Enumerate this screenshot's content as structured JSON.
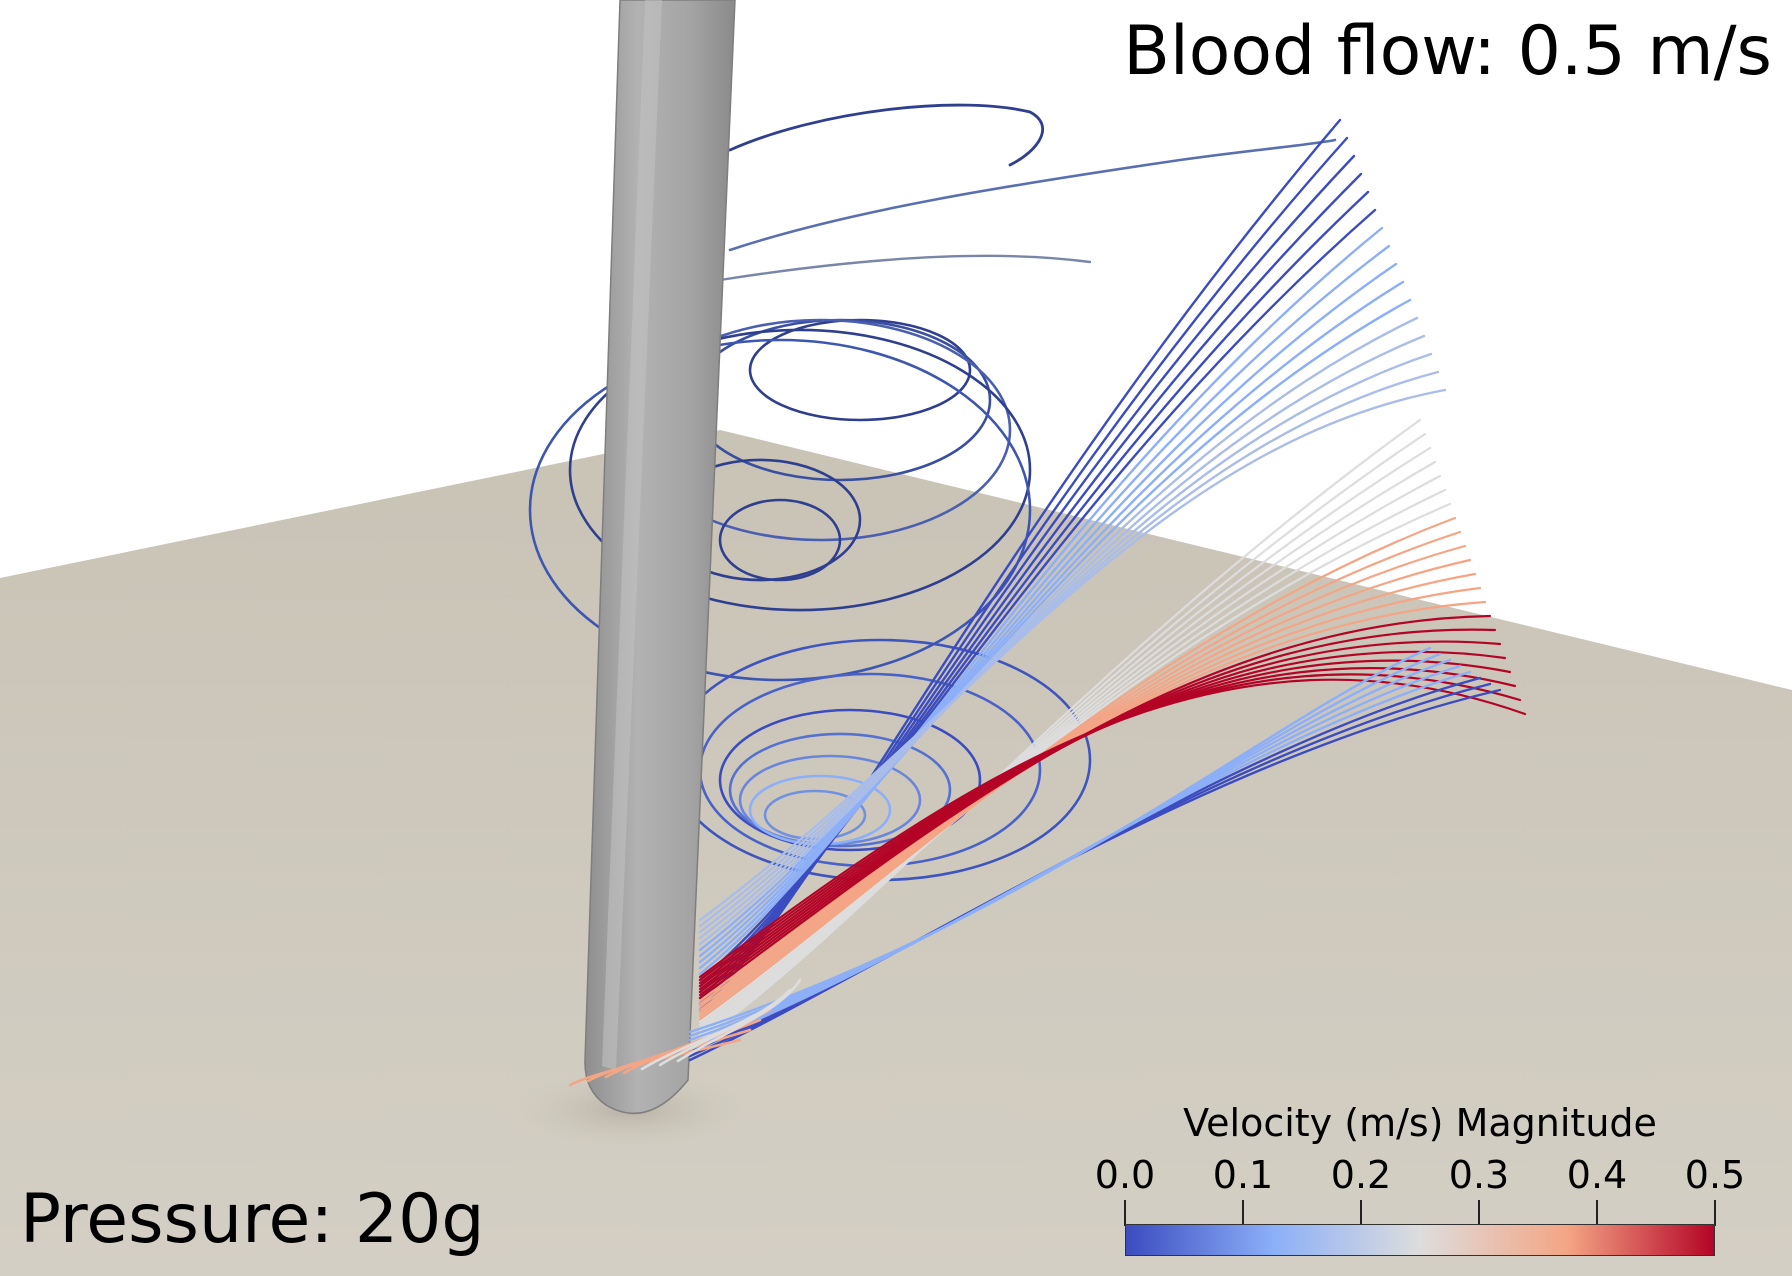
{
  "annotations": {
    "flow": "Blood flow: 0.5 m/s",
    "pressure": "Pressure: 20g"
  },
  "legend": {
    "title": "Velocity (m/s) Magnitude",
    "ticks": [
      "0.0",
      "0.1",
      "0.2",
      "0.3",
      "0.4",
      "0.5"
    ],
    "range": [
      0.0,
      0.5
    ],
    "colors": [
      "#3b4cc0",
      "#8caff8",
      "#dddddd",
      "#f4a585",
      "#b40426"
    ]
  },
  "scene": {
    "colors": {
      "ground": "#cdc8bc",
      "catheter": "#a4a4a4",
      "background": "#ffffff"
    }
  }
}
